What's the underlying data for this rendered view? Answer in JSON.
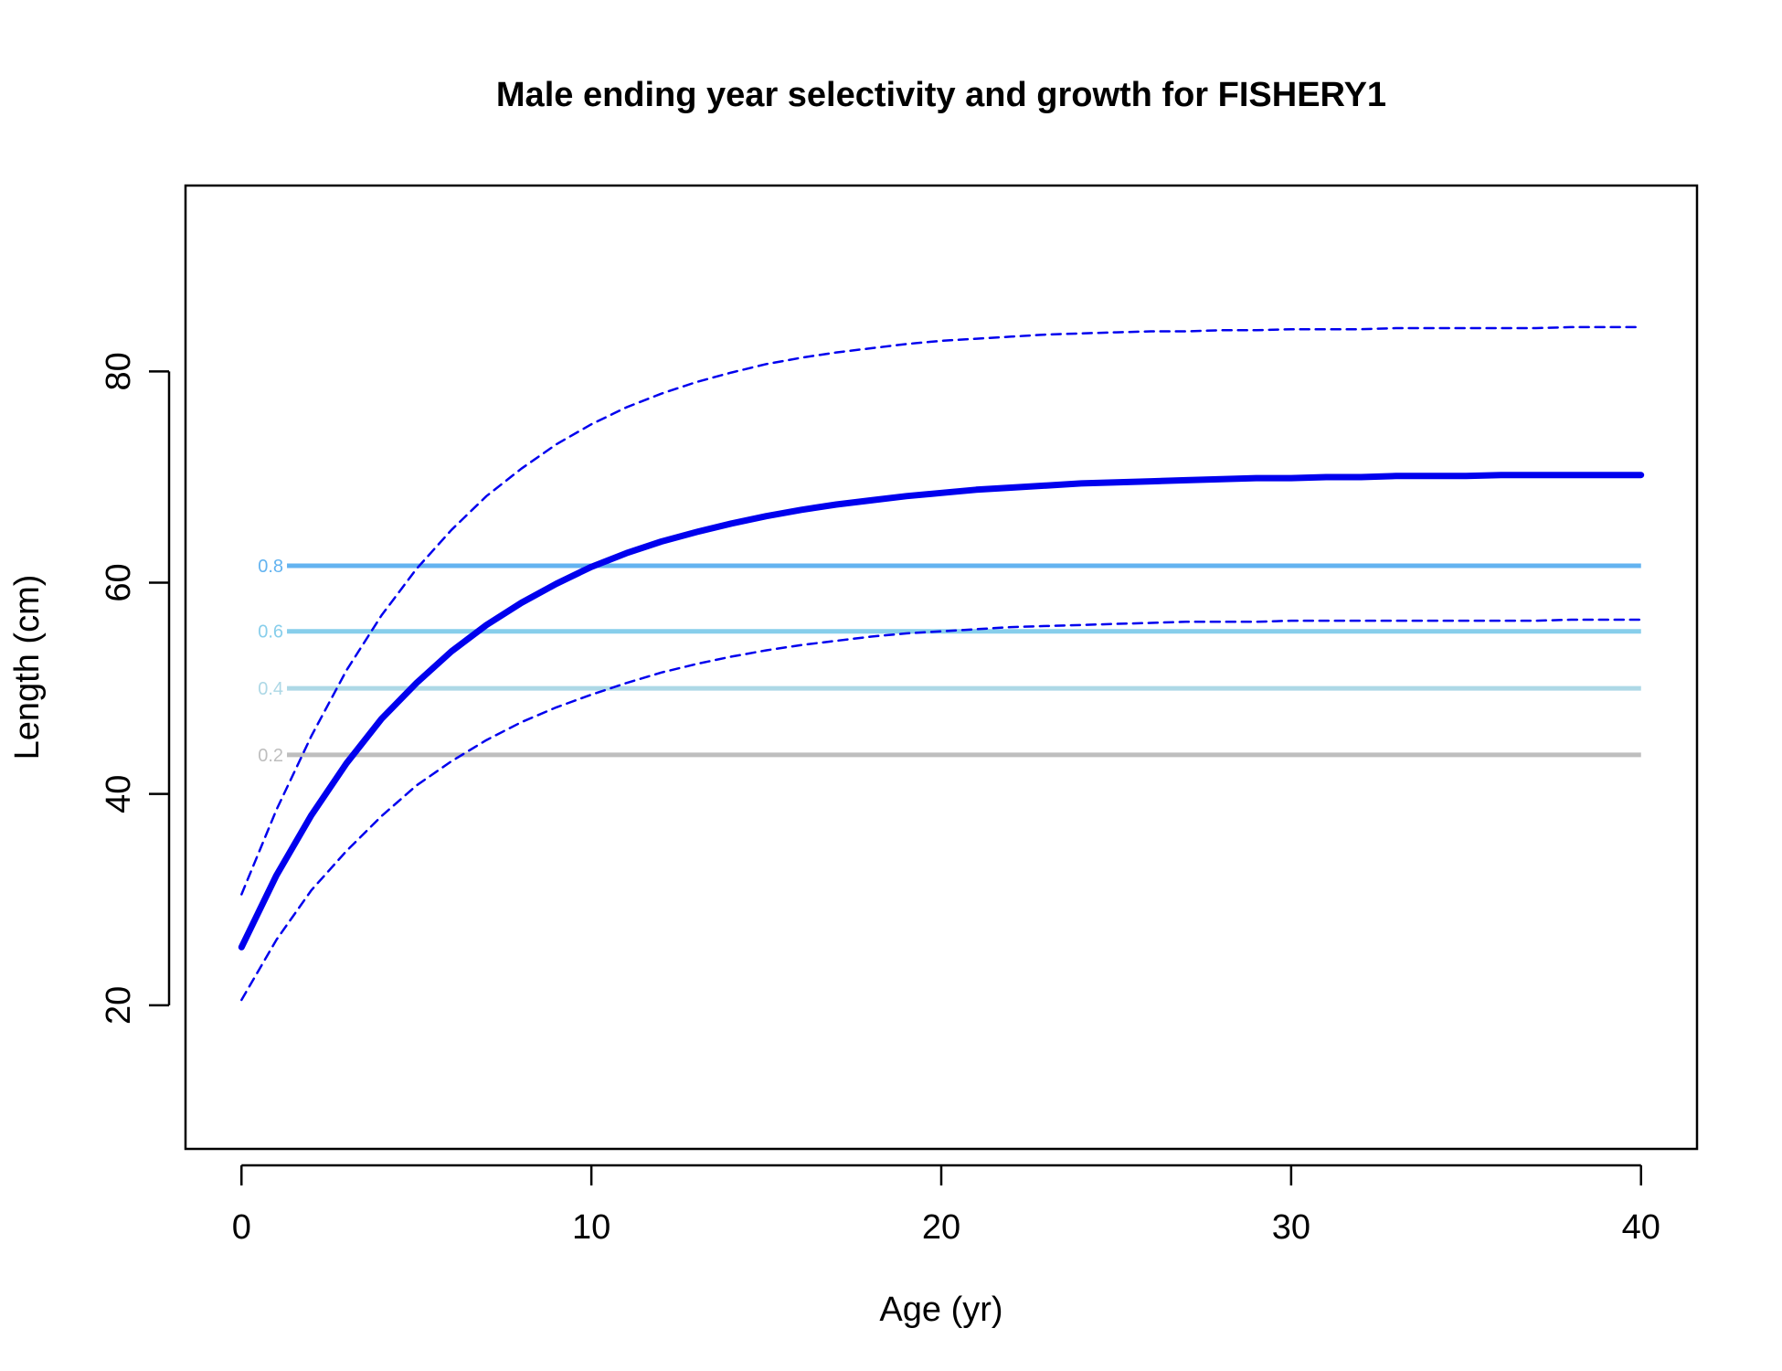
{
  "chart_data": {
    "type": "line",
    "title": "Male ending year selectivity and growth for FISHERY1",
    "xlabel": "Age (yr)",
    "ylabel": "Length (cm)",
    "xlim": [
      -1.6,
      41.6
    ],
    "ylim": [
      6.4,
      97.6
    ],
    "xticks": [
      0,
      10,
      20,
      30,
      40
    ],
    "yticks": [
      20,
      40,
      60,
      80
    ],
    "grid": false,
    "legend": "none",
    "x": [
      0,
      1,
      2,
      3,
      4,
      5,
      6,
      7,
      8,
      9,
      10,
      11,
      12,
      13,
      14,
      15,
      16,
      17,
      18,
      19,
      20,
      21,
      22,
      23,
      24,
      25,
      26,
      27,
      28,
      29,
      30,
      31,
      32,
      33,
      34,
      35,
      36,
      37,
      38,
      39,
      40
    ],
    "series": [
      {
        "role": "mean-length",
        "color": "#0000ee",
        "style": "solid",
        "values": [
          25.5,
          32.3,
          38.0,
          42.9,
          47.1,
          50.5,
          53.5,
          56.0,
          58.1,
          59.9,
          61.5,
          62.8,
          63.9,
          64.8,
          65.6,
          66.3,
          66.9,
          67.4,
          67.8,
          68.2,
          68.5,
          68.8,
          69.0,
          69.2,
          69.4,
          69.5,
          69.6,
          69.7,
          69.8,
          69.9,
          69.9,
          70.0,
          70.0,
          70.1,
          70.1,
          70.1,
          70.2,
          70.2,
          70.2,
          70.2,
          70.2
        ]
      },
      {
        "role": "upper-interval",
        "color": "#0000ee",
        "style": "dashed",
        "values": [
          30.5,
          38.5,
          45.5,
          51.7,
          56.9,
          61.3,
          65.0,
          68.2,
          70.8,
          73.1,
          75.0,
          76.6,
          77.9,
          79.0,
          79.9,
          80.7,
          81.3,
          81.8,
          82.2,
          82.6,
          82.9,
          83.1,
          83.3,
          83.5,
          83.6,
          83.7,
          83.8,
          83.8,
          83.9,
          83.9,
          84.0,
          84.0,
          84.0,
          84.1,
          84.1,
          84.1,
          84.1,
          84.1,
          84.2,
          84.2,
          84.2
        ]
      },
      {
        "role": "lower-interval",
        "color": "#0000ee",
        "style": "dashed",
        "values": [
          20.5,
          26.2,
          30.9,
          34.6,
          37.9,
          40.8,
          43.1,
          45.1,
          46.8,
          48.2,
          49.4,
          50.5,
          51.5,
          52.3,
          53.0,
          53.6,
          54.1,
          54.5,
          54.9,
          55.2,
          55.4,
          55.6,
          55.8,
          55.9,
          56.0,
          56.1,
          56.2,
          56.3,
          56.3,
          56.3,
          56.4,
          56.4,
          56.4,
          56.4,
          56.4,
          56.4,
          56.4,
          56.4,
          56.5,
          56.5,
          56.5
        ]
      }
    ],
    "selectivity_levels": [
      {
        "label": "0.2",
        "length": 43.7,
        "color": "#bebebe"
      },
      {
        "label": "0.4",
        "length": 50.0,
        "color": "#add8e6"
      },
      {
        "label": "0.6",
        "length": 55.4,
        "color": "#87ceeb"
      },
      {
        "label": "0.8",
        "length": 61.6,
        "color": "#63b3f0"
      }
    ],
    "selectivity_x_range": [
      1.3,
      40
    ]
  }
}
